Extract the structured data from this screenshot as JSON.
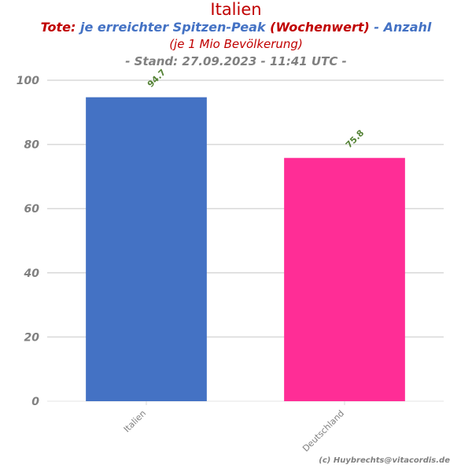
{
  "chart_data": {
    "type": "bar",
    "title": "Italien",
    "subtitle_parts": [
      {
        "text": "Tote:",
        "color": "#c00000"
      },
      {
        "text": "je erreichter Spitzen-Peak",
        "color": "#4472c4"
      },
      {
        "text": "(Wochenwert)",
        "color": "#c00000"
      },
      {
        "text": "- Anzahl",
        "color": "#4472c4"
      }
    ],
    "subtitle_line2": "(je 1 Mio Bevölkerung)",
    "subtitle_line3": "- Stand: 27.09.2023 - 11:41 UTC -",
    "categories": [
      "Italien",
      "Deutschland"
    ],
    "values": [
      94.7,
      75.8
    ],
    "data_labels": [
      "94.7",
      "75.8"
    ],
    "bar_colors": [
      "#4472c4",
      "#ff2d96"
    ],
    "ylim": [
      0,
      100
    ],
    "yticks": [
      0,
      20,
      40,
      60,
      80,
      100
    ],
    "grid": true,
    "credit": "(c) Huybrechts@vitacordis.de"
  }
}
